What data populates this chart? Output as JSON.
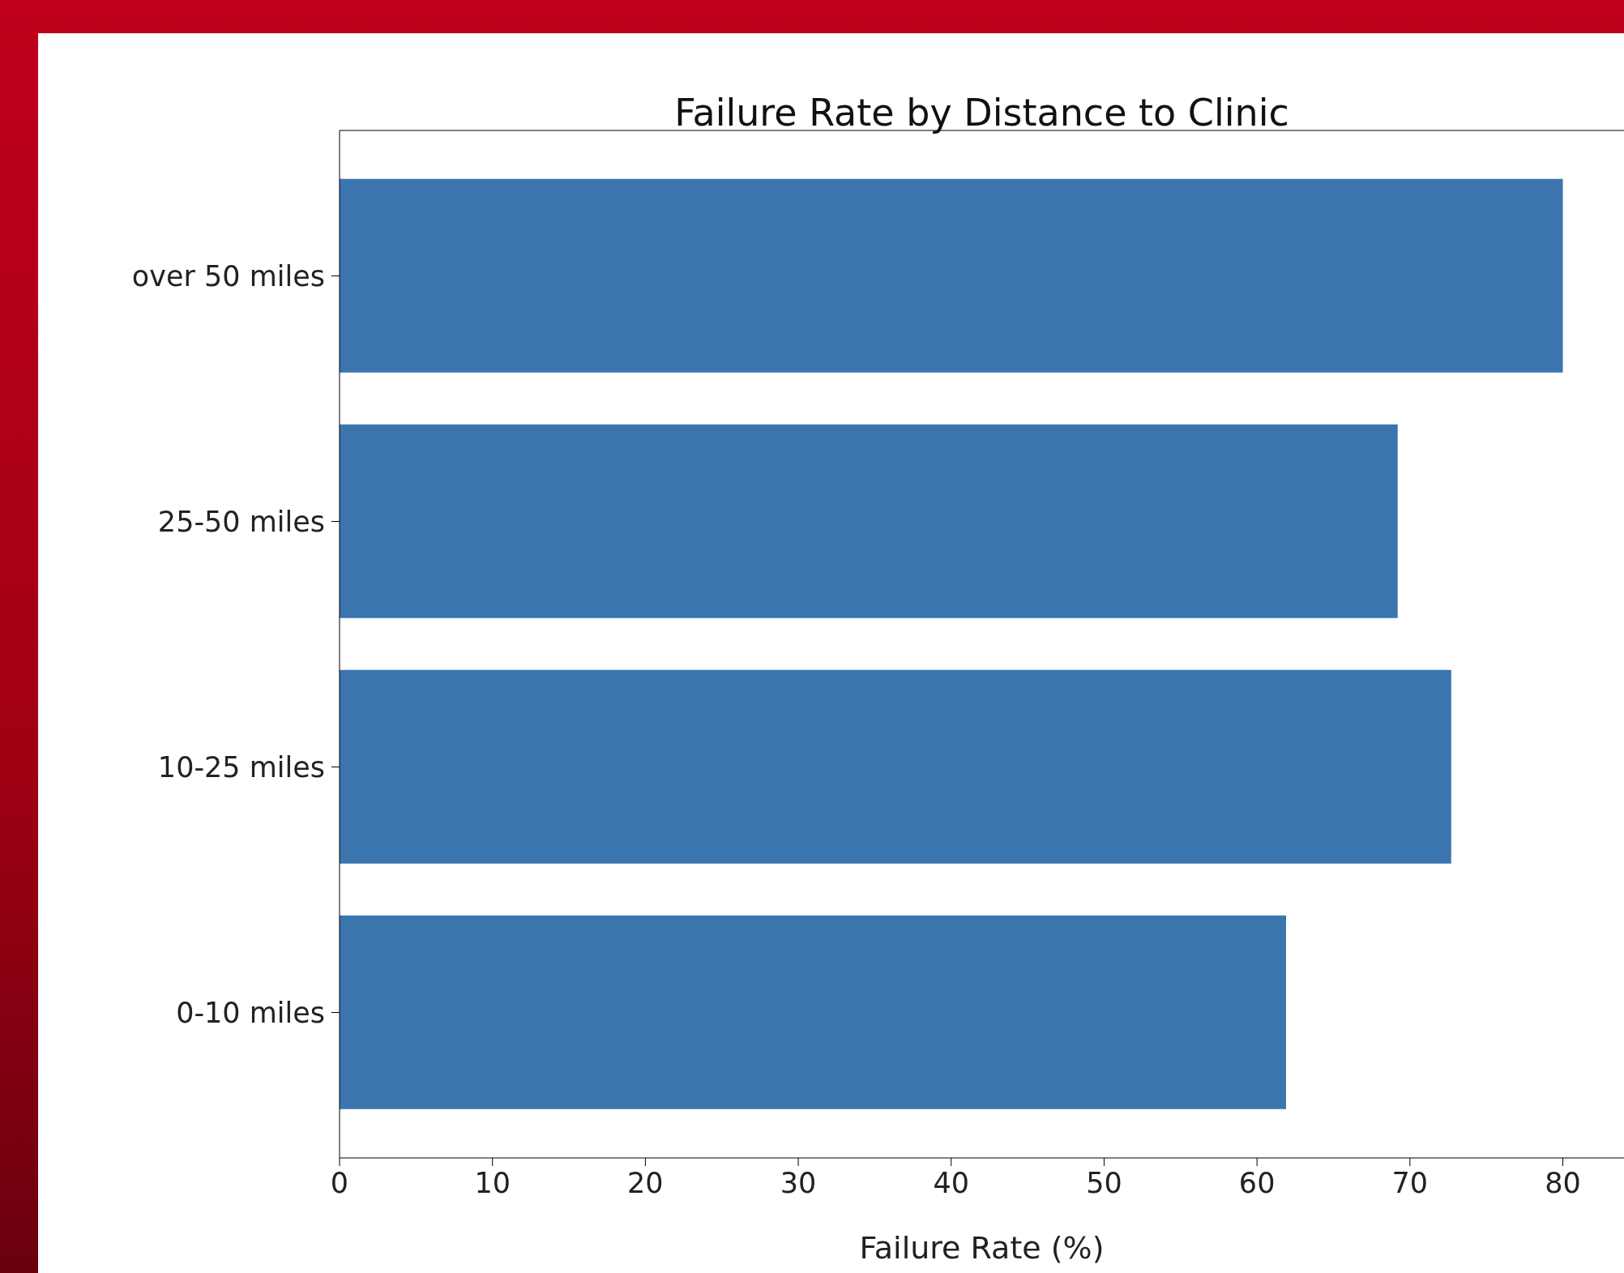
{
  "chart_data": {
    "type": "bar",
    "orientation": "horizontal",
    "title": "Failure Rate by Distance to Clinic",
    "xlabel": "Failure Rate (%)",
    "categories": [
      "over 50 miles",
      "25-50 miles",
      "10-25 miles",
      "0-10 miles"
    ],
    "values": [
      80.0,
      69.2,
      72.7,
      61.9
    ],
    "color": "#3b75ae",
    "xlim": [
      0,
      84
    ],
    "xticks": [
      0,
      10,
      20,
      30,
      40,
      50,
      60,
      70,
      80
    ]
  }
}
